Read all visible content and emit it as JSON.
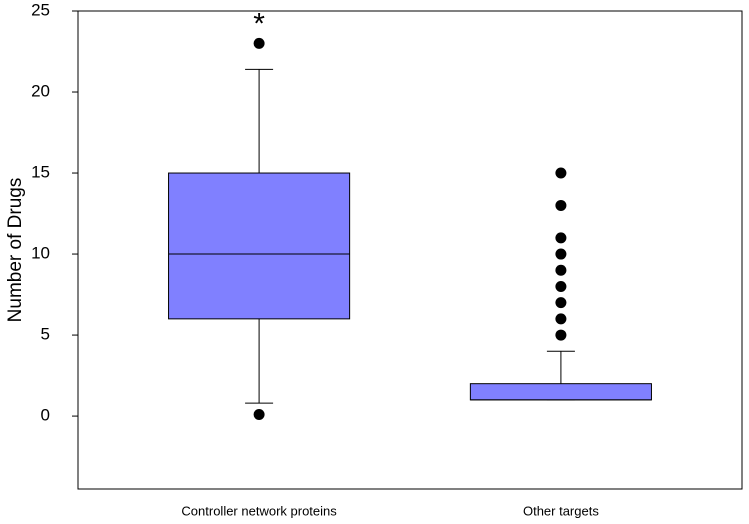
{
  "chart_data": {
    "type": "box",
    "y_label": "Number of Drugs",
    "categories": [
      "Controller network proteins",
      "Other targets"
    ],
    "color": "#8080ff",
    "boxes": [
      {
        "whislo": 0.8,
        "q1": 6,
        "med": 10,
        "q3": 15,
        "whishi": 21.4,
        "fliers": [
          0.1,
          23
        ]
      },
      {
        "whislo": 1,
        "q1": 1,
        "med": 1,
        "q3": 2,
        "whishi": 4,
        "fliers": [
          5,
          6,
          7,
          8,
          9,
          10,
          11,
          13,
          15
        ]
      }
    ],
    "annotations": [
      {
        "text": "*",
        "category": 0
      }
    ],
    "ylim": [
      -4.5,
      25
    ],
    "yticks": [
      0,
      5,
      10,
      15,
      20,
      25
    ]
  }
}
